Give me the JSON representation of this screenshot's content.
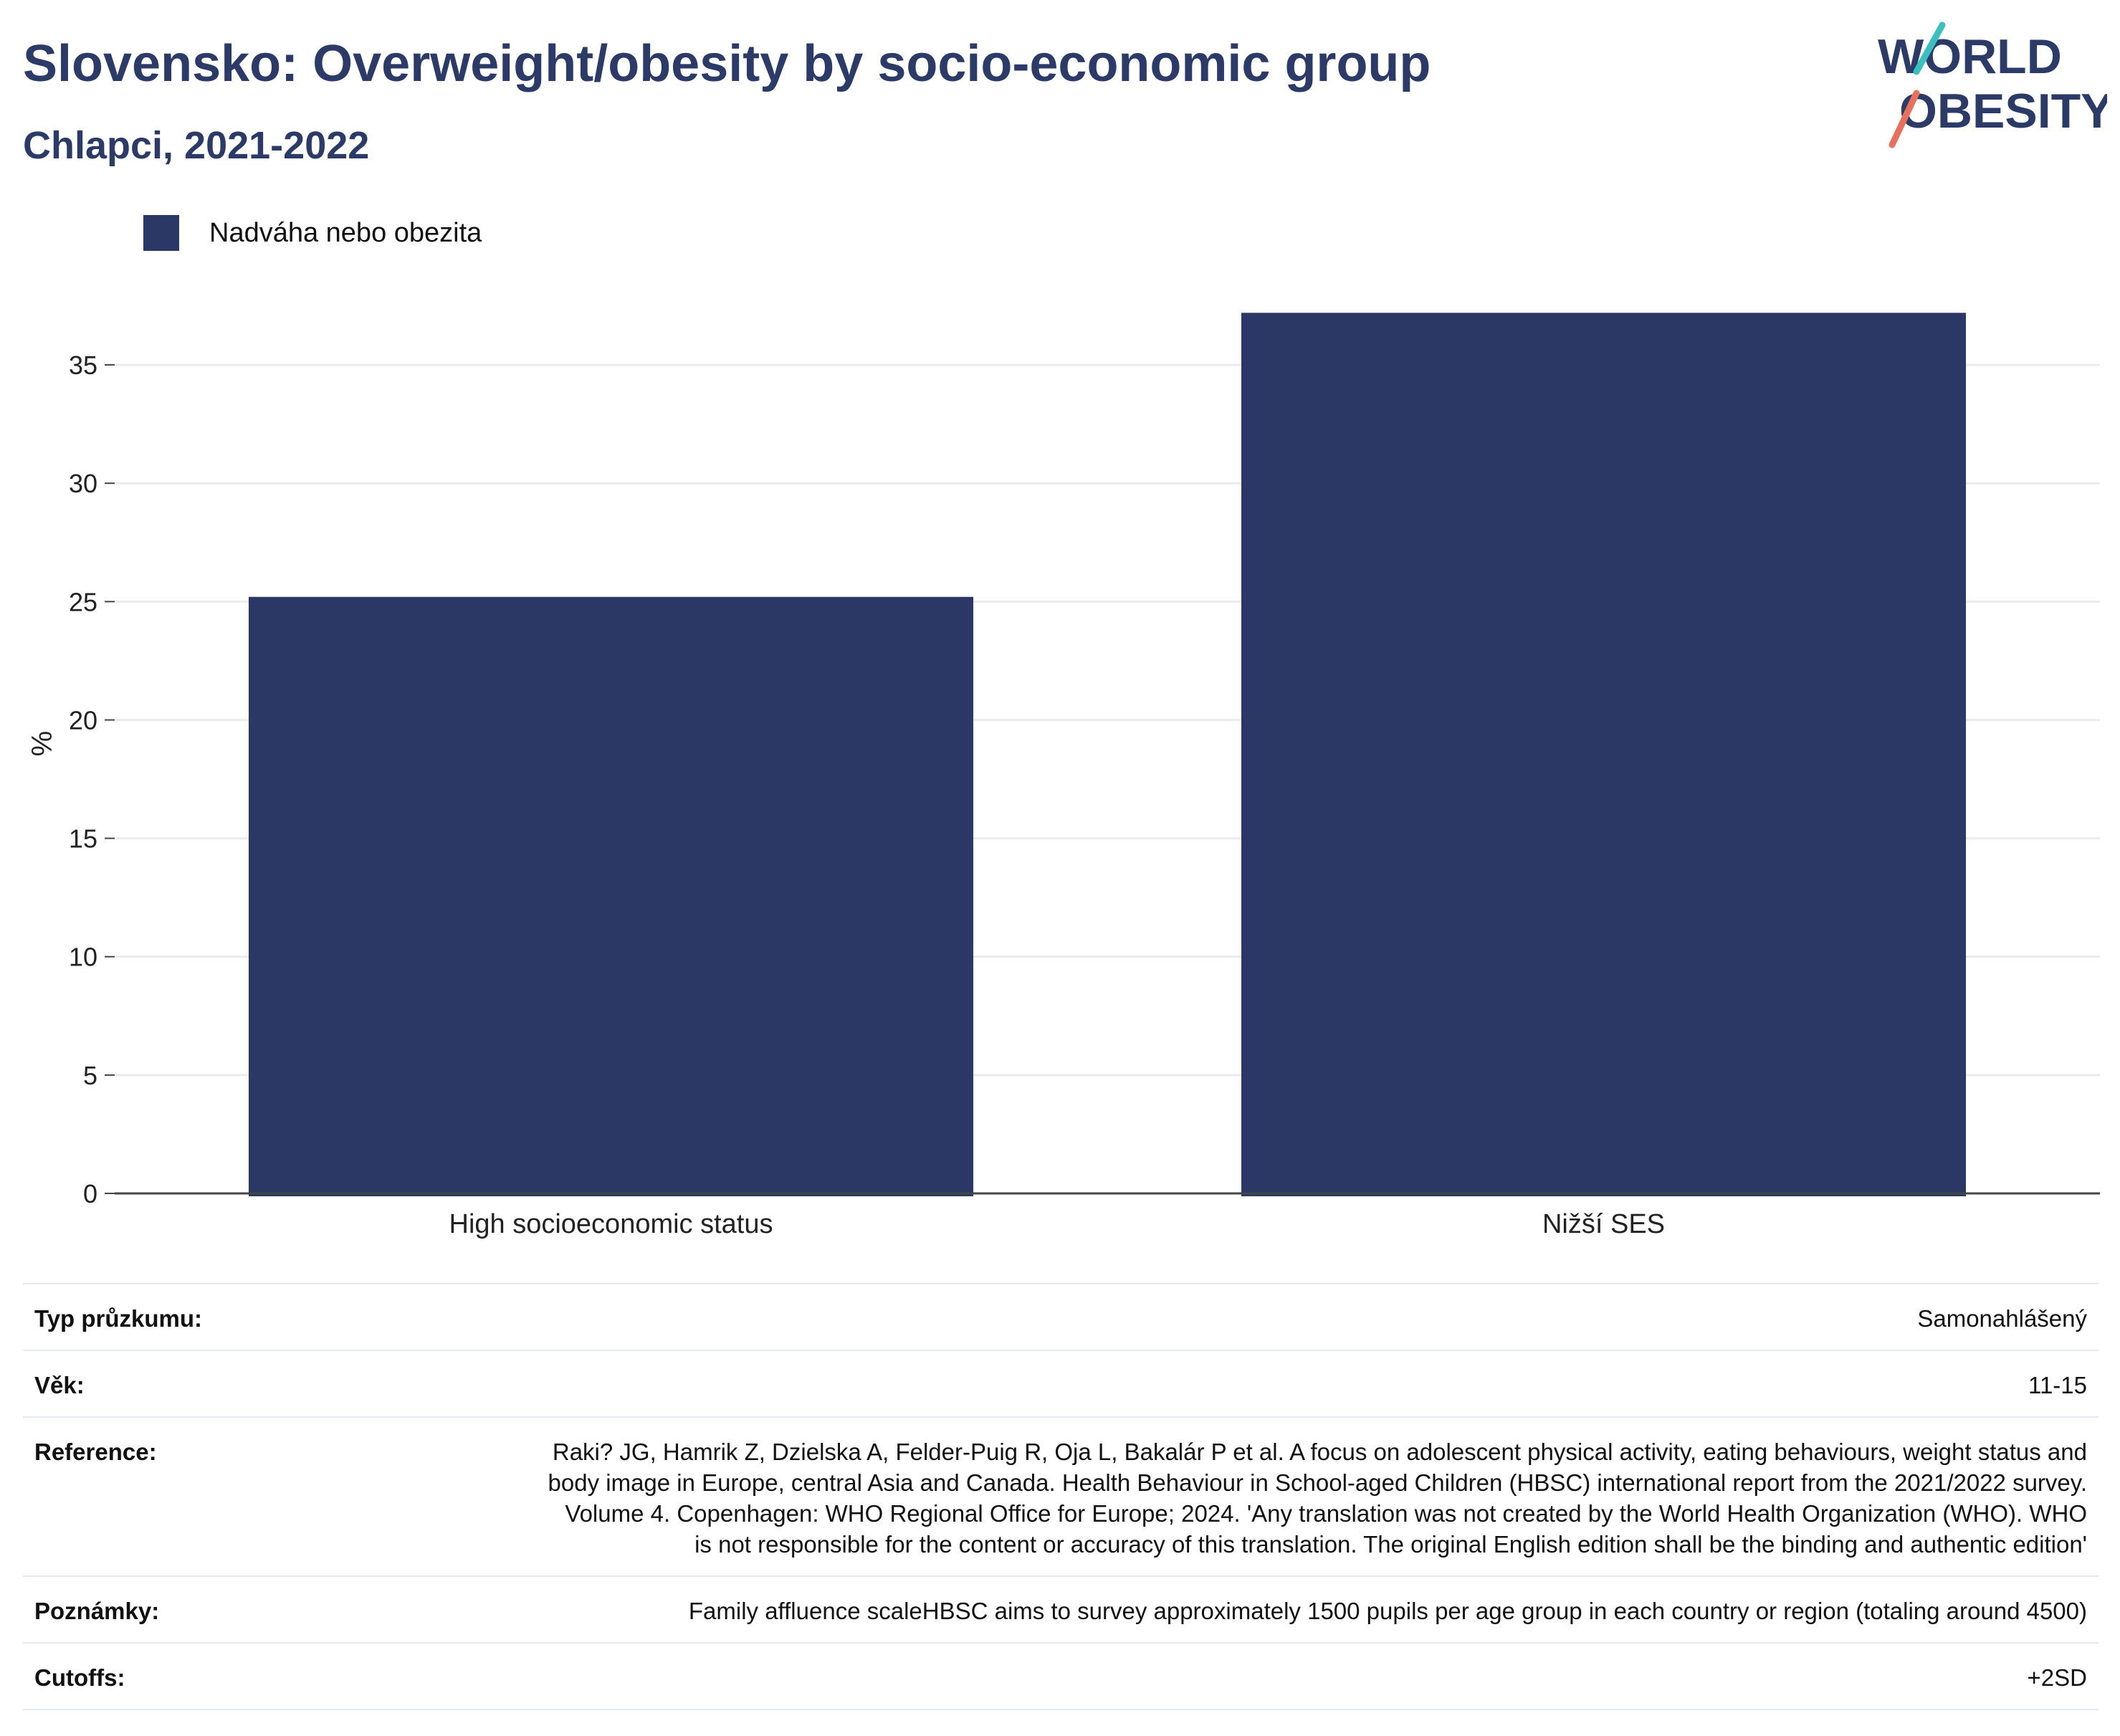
{
  "header": {
    "title": "Slovensko: Overweight/obesity by socio-economic group",
    "subtitle": "Chlapci, 2021-2022",
    "logo_line1": "WORLD",
    "logo_line2": "OBESITY"
  },
  "colors": {
    "bar": "#2b3764",
    "title": "#2b3a67",
    "grid": "#ebebef",
    "logo_teal": "#3bbfbf",
    "logo_coral": "#e8705e"
  },
  "chart_data": {
    "type": "bar",
    "categories": [
      "High socioeconomic status",
      "Nižší SES"
    ],
    "series": [
      {
        "name": "Nadváha nebo obezita",
        "values": [
          25.2,
          37.2
        ]
      }
    ],
    "ylabel": "%",
    "xlabel": "",
    "ylim": [
      0,
      38
    ],
    "yticks": [
      0,
      5,
      10,
      15,
      20,
      25,
      30,
      35
    ],
    "grid": true,
    "legend": "top-left"
  },
  "info": [
    {
      "label": "Typ průzkumu:",
      "value": "Samonahlášený"
    },
    {
      "label": "Věk:",
      "value": "11-15"
    },
    {
      "label": "Reference:",
      "value": "Raki? JG, Hamrik Z, Dzielska A, Felder-Puig R, Oja L, Bakalár P et al. A focus on adolescent physical activity, eating behaviours, weight status and body image in Europe, central Asia and Canada. Health Behaviour in School-aged Children (HBSC) international report from the 2021/2022 survey. Volume 4. Copenhagen: WHO Regional Office for Europe; 2024. 'Any translation was not created by the World Health Organization (WHO). WHO is not responsible for the content or accuracy of this translation. The original English edition shall be the binding and authentic edition'"
    },
    {
      "label": "Poznámky:",
      "value": "Family affluence scaleHBSC aims to survey approximately 1500 pupils per age group in each country or region (totaling around 4500)"
    },
    {
      "label": "Cutoffs:",
      "value": "+2SD"
    }
  ]
}
